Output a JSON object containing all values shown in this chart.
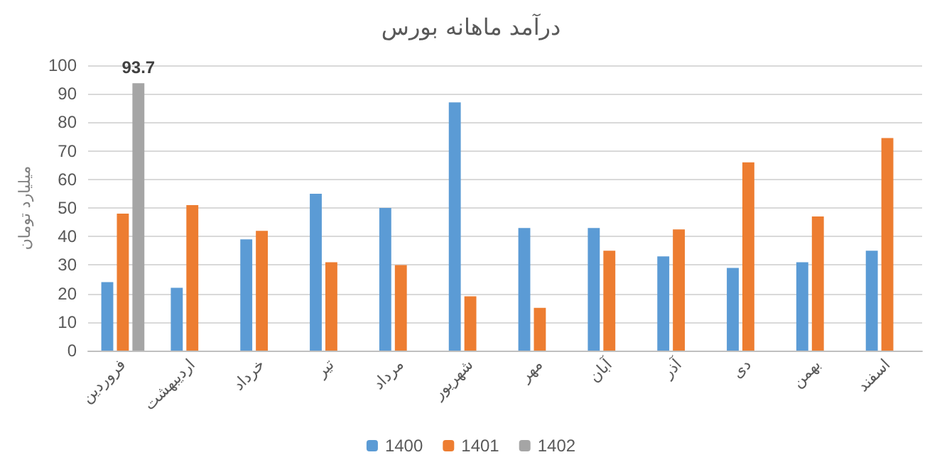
{
  "chart_data": {
    "type": "bar",
    "title": "درآمد ماهانه بورس",
    "ylabel": "میلیارد تومان",
    "categories": [
      "فروردین",
      "اردیبهشت",
      "خرداد",
      "تیر",
      "مرداد",
      "شهریور",
      "مهر",
      "آبان",
      "آذر",
      "دی",
      "بهمن",
      "اسفند"
    ],
    "series": [
      {
        "name": "1400",
        "color": "#5b9bd5",
        "values": [
          24,
          22,
          39,
          55,
          50,
          87,
          43,
          43,
          33,
          29,
          31,
          35
        ]
      },
      {
        "name": "1401",
        "color": "#ed7d31",
        "values": [
          48,
          51,
          42,
          31,
          30,
          19,
          15,
          35,
          42.5,
          66,
          47,
          74.5
        ]
      },
      {
        "name": "1402",
        "color": "#a5a5a5",
        "values": [
          93.7,
          null,
          null,
          null,
          null,
          null,
          null,
          null,
          null,
          null,
          null,
          null
        ],
        "value_labels": [
          "93.7",
          null,
          null,
          null,
          null,
          null,
          null,
          null,
          null,
          null,
          null,
          null
        ]
      }
    ],
    "ylim": [
      0,
      100
    ],
    "yticks": [
      0,
      10,
      20,
      30,
      40,
      50,
      60,
      70,
      80,
      90,
      100
    ],
    "grid": "y",
    "legend": "bottom"
  }
}
